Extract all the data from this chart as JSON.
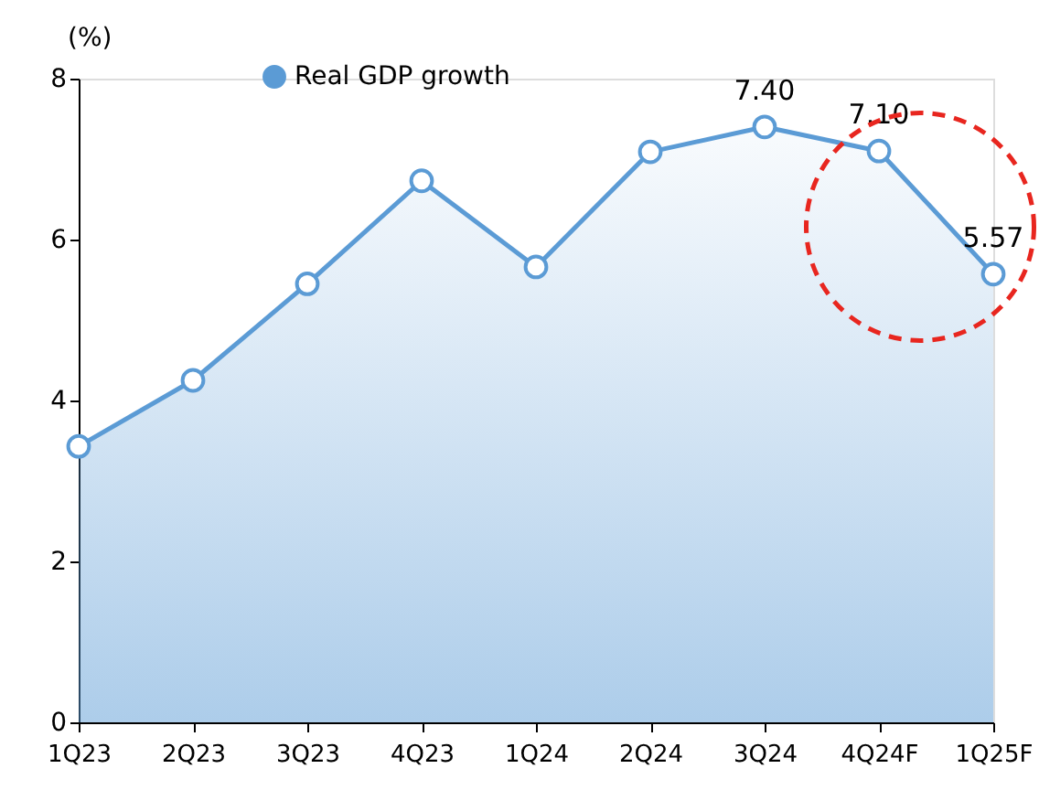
{
  "chart_data": {
    "type": "area",
    "ylabel": "(%)",
    "categories": [
      "1Q23",
      "2Q23",
      "3Q23",
      "4Q23",
      "1Q24",
      "2Q24",
      "3Q24",
      "4Q24F",
      "1Q25F"
    ],
    "series": [
      {
        "name": "Real GDP growth",
        "color": "#5b9bd5",
        "values": [
          3.43,
          4.25,
          5.45,
          6.73,
          5.66,
          7.09,
          7.4,
          7.1,
          5.57
        ],
        "value_labels": [
          null,
          null,
          null,
          null,
          null,
          null,
          "7.40",
          "7.10",
          "5.57"
        ]
      }
    ],
    "ylim": [
      0,
      8
    ],
    "yticks": [
      0,
      2,
      4,
      6,
      8
    ],
    "grid": false,
    "legend": "top",
    "marker": "circle"
  }
}
